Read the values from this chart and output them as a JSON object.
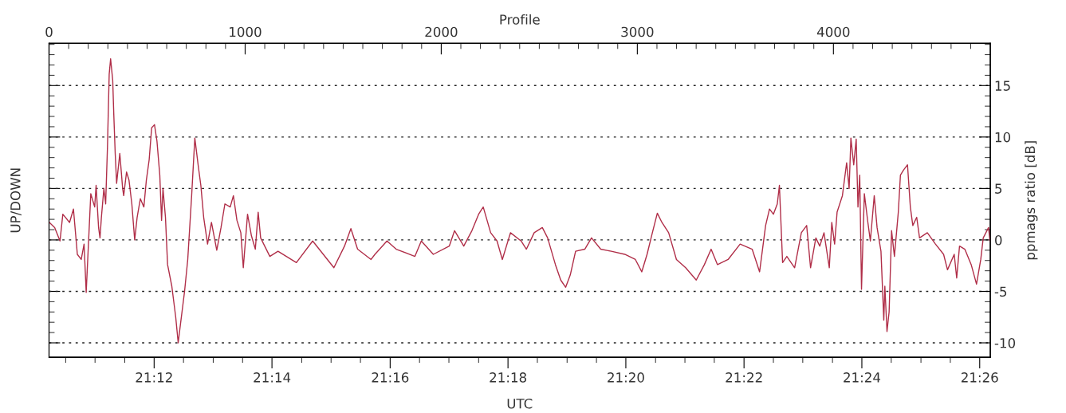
{
  "chart_data": {
    "type": "line",
    "xlabel": "UTC",
    "x2label": "Profile",
    "ylabel": "UP/DOWN",
    "y2label": "ppmags ratio [dB]",
    "xlim": [
      21.1703,
      21.4363
    ],
    "xticks": [
      {
        "value": 21.175,
        "label": null
      },
      {
        "value": 21.1833,
        "label": null
      },
      {
        "value": 21.1917,
        "label": null
      },
      {
        "value": 21.2,
        "label": "21:12"
      },
      {
        "value": 21.2083,
        "label": null
      },
      {
        "value": 21.2167,
        "label": null
      },
      {
        "value": 21.225,
        "label": null
      },
      {
        "value": 21.2333,
        "label": "21:14"
      },
      {
        "value": 21.2417,
        "label": null
      },
      {
        "value": 21.25,
        "label": null
      },
      {
        "value": 21.2583,
        "label": null
      },
      {
        "value": 21.2667,
        "label": "21:16"
      },
      {
        "value": 21.275,
        "label": null
      },
      {
        "value": 21.2833,
        "label": null
      },
      {
        "value": 21.2917,
        "label": null
      },
      {
        "value": 21.3,
        "label": "21:18"
      },
      {
        "value": 21.3083,
        "label": null
      },
      {
        "value": 21.3167,
        "label": null
      },
      {
        "value": 21.325,
        "label": null
      },
      {
        "value": 21.3333,
        "label": "21:20"
      },
      {
        "value": 21.3417,
        "label": null
      },
      {
        "value": 21.35,
        "label": null
      },
      {
        "value": 21.3583,
        "label": null
      },
      {
        "value": 21.3667,
        "label": "21:22"
      },
      {
        "value": 21.375,
        "label": null
      },
      {
        "value": 21.3833,
        "label": null
      },
      {
        "value": 21.3917,
        "label": null
      },
      {
        "value": 21.4,
        "label": "21:24"
      },
      {
        "value": 21.4083,
        "label": null
      },
      {
        "value": 21.4167,
        "label": null
      },
      {
        "value": 21.425,
        "label": null
      },
      {
        "value": 21.4333,
        "label": "21:26"
      }
    ],
    "x2lim": [
      0,
      4800
    ],
    "x2ticks": [
      0,
      {
        "value": 100,
        "label": null
      },
      {
        "value": 200,
        "label": null
      },
      {
        "value": 300,
        "label": null
      },
      {
        "value": 400,
        "label": null
      },
      {
        "value": 500,
        "label": null
      },
      {
        "value": 600,
        "label": null
      },
      {
        "value": 700,
        "label": null
      },
      {
        "value": 800,
        "label": null
      },
      {
        "value": 900,
        "label": null
      },
      1000,
      {
        "value": 1100,
        "label": null
      },
      {
        "value": 1200,
        "label": null
      },
      {
        "value": 1300,
        "label": null
      },
      {
        "value": 1400,
        "label": null
      },
      {
        "value": 1500,
        "label": null
      },
      {
        "value": 1600,
        "label": null
      },
      {
        "value": 1700,
        "label": null
      },
      {
        "value": 1800,
        "label": null
      },
      {
        "value": 1900,
        "label": null
      },
      2000,
      {
        "value": 2100,
        "label": null
      },
      {
        "value": 2200,
        "label": null
      },
      {
        "value": 2300,
        "label": null
      },
      {
        "value": 2400,
        "label": null
      },
      {
        "value": 2500,
        "label": null
      },
      {
        "value": 2600,
        "label": null
      },
      {
        "value": 2700,
        "label": null
      },
      {
        "value": 2800,
        "label": null
      },
      {
        "value": 2900,
        "label": null
      },
      3000,
      {
        "value": 3100,
        "label": null
      },
      {
        "value": 3200,
        "label": null
      },
      {
        "value": 3300,
        "label": null
      },
      {
        "value": 3400,
        "label": null
      },
      {
        "value": 3500,
        "label": null
      },
      {
        "value": 3600,
        "label": null
      },
      {
        "value": 3700,
        "label": null
      },
      {
        "value": 3800,
        "label": null
      },
      {
        "value": 3900,
        "label": null
      },
      4000,
      {
        "value": 4100,
        "label": null
      },
      {
        "value": 4200,
        "label": null
      },
      {
        "value": 4300,
        "label": null
      },
      {
        "value": 4400,
        "label": null
      },
      {
        "value": 4500,
        "label": null
      },
      {
        "value": 4600,
        "label": null
      },
      {
        "value": 4700,
        "label": null
      }
    ],
    "y2lim": [
      -11.4,
      19.1
    ],
    "y2ticks": [
      -10,
      {
        "value": -9,
        "label": null
      },
      {
        "value": -8,
        "label": null
      },
      {
        "value": -7,
        "label": null
      },
      {
        "value": -6,
        "label": null
      },
      -5,
      {
        "value": -4,
        "label": null
      },
      {
        "value": -3,
        "label": null
      },
      {
        "value": -2,
        "label": null
      },
      {
        "value": -1,
        "label": null
      },
      0,
      {
        "value": 1,
        "label": null
      },
      {
        "value": 2,
        "label": null
      },
      {
        "value": 3,
        "label": null
      },
      {
        "value": 4,
        "label": null
      },
      5,
      {
        "value": 6,
        "label": null
      },
      {
        "value": 7,
        "label": null
      },
      {
        "value": 8,
        "label": null
      },
      {
        "value": 9,
        "label": null
      },
      10,
      {
        "value": 11,
        "label": null
      },
      {
        "value": 12,
        "label": null
      },
      {
        "value": 13,
        "label": null
      },
      {
        "value": 14,
        "label": null
      },
      15,
      {
        "value": 16,
        "label": null
      },
      {
        "value": 17,
        "label": null
      },
      {
        "value": 18,
        "label": null
      },
      {
        "value": 19,
        "label": null
      }
    ],
    "grid": "y",
    "series": [
      {
        "color": "#b02e48",
        "axis": "y2",
        "x": [
          21.1704,
          21.1719,
          21.1734,
          21.1742,
          21.1761,
          21.1772,
          21.1783,
          21.1794,
          21.1802,
          21.1808,
          21.1821,
          21.1832,
          21.1836,
          21.1843,
          21.1847,
          21.1851,
          21.1858,
          21.1863,
          21.1868,
          21.1873,
          21.1877,
          21.1883,
          21.1886,
          21.189,
          21.1894,
          21.1903,
          21.1911,
          21.1914,
          21.1922,
          21.1929,
          21.1937,
          21.1945,
          21.1952,
          21.1961,
          21.1971,
          21.1978,
          21.1986,
          21.1993,
          21.2001,
          21.2008,
          21.2016,
          21.2021,
          21.2025,
          21.2032,
          21.2038,
          21.205,
          21.2061,
          21.2068,
          21.2074,
          21.2086,
          21.2095,
          21.2106,
          21.2115,
          21.2125,
          21.2132,
          21.214,
          21.2151,
          21.2162,
          21.2177,
          21.2189,
          21.22,
          21.2215,
          21.2224,
          21.2234,
          21.2245,
          21.2252,
          21.2264,
          21.2275,
          21.2286,
          21.2294,
          21.2301,
          21.2327,
          21.235,
          21.2402,
          21.2448,
          21.2478,
          21.2508,
          21.2538,
          21.2556,
          21.2575,
          21.2613,
          21.2624,
          21.2658,
          21.2684,
          21.2737,
          21.2755,
          21.2789,
          21.2834,
          21.2849,
          21.2875,
          21.2898,
          21.2917,
          21.293,
          21.2951,
          21.2969,
          21.2984,
          21.3007,
          21.3037,
          21.3052,
          21.3074,
          21.3097,
          21.3112,
          21.3134,
          21.3149,
          21.3163,
          21.3176,
          21.3191,
          21.3217,
          21.3236,
          21.3262,
          21.3292,
          21.333,
          21.336,
          21.3378,
          21.3393,
          21.3408,
          21.3422,
          21.3435,
          21.3454,
          21.3476,
          21.3502,
          21.3532,
          21.3555,
          21.3574,
          21.3592,
          21.3622,
          21.3656,
          21.369,
          21.3711,
          21.3728,
          21.3739,
          21.375,
          21.3761,
          21.3767,
          21.3776,
          21.3788,
          21.381,
          21.3829,
          21.3844,
          21.3855,
          21.387,
          21.3881,
          21.3893,
          21.3908,
          21.3915,
          21.3923,
          21.393,
          21.3945,
          21.3957,
          21.3964,
          21.3969,
          21.3977,
          21.3984,
          21.3989,
          21.3994,
          21.3999,
          21.4007,
          21.4017,
          21.4024,
          21.4035,
          21.4043,
          21.4054,
          21.4062,
          21.4065,
          21.4071,
          21.4077,
          21.4084,
          21.4092,
          21.4103,
          21.4109,
          21.4118,
          21.4129,
          21.4137,
          21.4144,
          21.4155,
          21.4163,
          21.4185,
          21.4208,
          21.4231,
          21.4242,
          21.4261,
          21.4268,
          21.4276,
          21.4291,
          21.4309,
          21.4324,
          21.4336,
          21.4343,
          21.4358,
          21.4362
        ],
        "values": [
          1.7,
          1.2,
          -0.1,
          2.5,
          1.7,
          3.0,
          -1.4,
          -1.9,
          -0.4,
          -5.1,
          4.5,
          3.2,
          5.3,
          1.2,
          0.2,
          2.2,
          5.0,
          3.5,
          8.9,
          16.1,
          17.6,
          15.5,
          12.2,
          8.4,
          5.5,
          8.4,
          5.0,
          4.3,
          6.6,
          5.8,
          3.5,
          0.0,
          2.2,
          4.0,
          3.2,
          5.8,
          7.8,
          10.9,
          11.2,
          9.6,
          6.3,
          1.9,
          5.0,
          2.2,
          -2.4,
          -4.5,
          -7.5,
          -10.0,
          -8.3,
          -5.0,
          -1.9,
          4.3,
          9.9,
          7.1,
          5.3,
          2.2,
          -0.4,
          1.7,
          -1.0,
          1.2,
          3.5,
          3.2,
          4.3,
          1.9,
          0.7,
          -2.7,
          2.5,
          0.4,
          -0.9,
          2.7,
          0.2,
          -1.6,
          -1.1,
          -2.2,
          -0.1,
          -1.4,
          -2.7,
          -0.6,
          1.1,
          -0.9,
          -1.9,
          -1.4,
          -0.1,
          -0.9,
          -1.6,
          -0.1,
          -1.4,
          -0.6,
          0.9,
          -0.6,
          0.9,
          2.5,
          3.2,
          0.7,
          -0.1,
          -1.9,
          0.7,
          -0.1,
          -0.9,
          0.7,
          1.2,
          0.2,
          -2.4,
          -3.9,
          -4.6,
          -3.4,
          -1.1,
          -0.9,
          0.2,
          -0.9,
          -1.1,
          -1.4,
          -1.9,
          -3.1,
          -1.4,
          0.7,
          2.6,
          1.7,
          0.7,
          -1.9,
          -2.7,
          -3.9,
          -2.4,
          -0.9,
          -2.4,
          -1.9,
          -0.4,
          -0.9,
          -3.1,
          1.4,
          3.0,
          2.5,
          3.5,
          5.3,
          -2.2,
          -1.6,
          -2.7,
          0.7,
          1.4,
          -2.7,
          0.2,
          -0.6,
          0.7,
          -2.7,
          1.7,
          -0.4,
          2.7,
          4.3,
          7.5,
          5.0,
          9.9,
          7.3,
          9.8,
          3.2,
          6.3,
          -4.8,
          4.5,
          1.7,
          -0.1,
          4.3,
          1.2,
          -1.1,
          -7.8,
          -4.5,
          -8.9,
          -7.0,
          0.9,
          -1.6,
          2.7,
          6.3,
          6.8,
          7.3,
          3.2,
          1.4,
          2.2,
          0.2,
          0.7,
          -0.4,
          -1.4,
          -2.9,
          -1.4,
          -3.7,
          -0.6,
          -0.9,
          -2.4,
          -4.3,
          -1.9,
          0.2,
          1.2,
          -0.1
        ]
      }
    ]
  }
}
